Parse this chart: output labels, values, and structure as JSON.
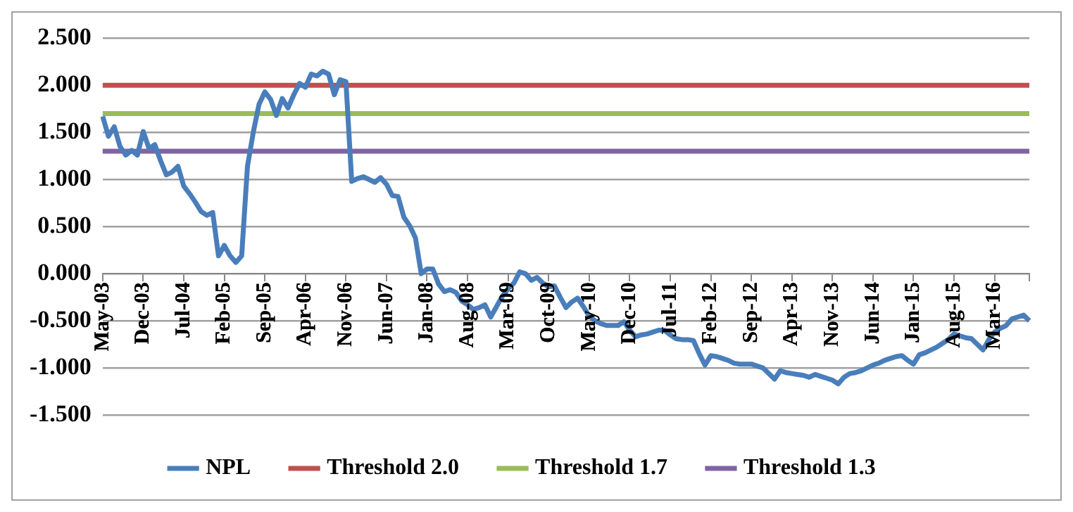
{
  "chart_data": {
    "type": "line",
    "categories": [
      "May-03",
      null,
      null,
      null,
      null,
      null,
      null,
      "Dec-03",
      null,
      null,
      null,
      null,
      null,
      null,
      "Jul-04",
      null,
      null,
      null,
      null,
      null,
      null,
      "Feb-05",
      null,
      null,
      null,
      null,
      null,
      null,
      "Sep-05",
      null,
      null,
      null,
      null,
      null,
      null,
      "Apr-06",
      null,
      null,
      null,
      null,
      null,
      null,
      "Nov-06",
      null,
      null,
      null,
      null,
      null,
      null,
      "Jun-07",
      null,
      null,
      null,
      null,
      null,
      null,
      "Jan-08",
      null,
      null,
      null,
      null,
      null,
      null,
      "Aug-08",
      null,
      null,
      null,
      null,
      null,
      null,
      "Mar-09",
      null,
      null,
      null,
      null,
      null,
      null,
      "Oct-09",
      null,
      null,
      null,
      null,
      null,
      null,
      "May-10",
      null,
      null,
      null,
      null,
      null,
      null,
      "Dec-10",
      null,
      null,
      null,
      null,
      null,
      null,
      "Jul-11",
      null,
      null,
      null,
      null,
      null,
      null,
      "Feb-12",
      null,
      null,
      null,
      null,
      null,
      null,
      "Sep-12",
      null,
      null,
      null,
      null,
      null,
      null,
      "Apr-13",
      null,
      null,
      null,
      null,
      null,
      null,
      "Nov-13",
      null,
      null,
      null,
      null,
      null,
      null,
      "Jun-14",
      null,
      null,
      null,
      null,
      null,
      null,
      "Jan-15",
      null,
      null,
      null,
      null,
      null,
      null,
      "Aug-15",
      null,
      null,
      null,
      null,
      null,
      null,
      "Mar-16",
      null,
      null,
      null,
      null,
      null,
      null
    ],
    "series": [
      {
        "name": "NPL",
        "color": "#4a7ebb",
        "values": [
          1.67,
          1.46,
          1.56,
          1.35,
          1.26,
          1.31,
          1.26,
          1.51,
          1.33,
          1.37,
          1.2,
          1.05,
          1.08,
          1.14,
          0.93,
          0.85,
          0.76,
          0.66,
          0.62,
          0.65,
          0.19,
          0.3,
          0.19,
          0.12,
          0.19,
          1.14,
          1.5,
          1.8,
          1.93,
          1.85,
          1.68,
          1.86,
          1.76,
          1.9,
          2.02,
          1.98,
          2.12,
          2.1,
          2.15,
          2.12,
          1.9,
          2.06,
          2.04,
          0.98,
          1.01,
          1.03,
          1.0,
          0.97,
          1.02,
          0.95,
          0.83,
          0.82,
          0.6,
          0.51,
          0.38,
          0.0,
          0.05,
          0.05,
          -0.11,
          -0.19,
          -0.17,
          -0.2,
          -0.29,
          -0.33,
          -0.38,
          -0.36,
          -0.33,
          -0.46,
          -0.35,
          -0.24,
          -0.16,
          -0.1,
          0.02,
          0.0,
          -0.07,
          -0.04,
          -0.1,
          -0.14,
          -0.13,
          -0.25,
          -0.36,
          -0.3,
          -0.26,
          -0.35,
          -0.45,
          -0.5,
          -0.53,
          -0.55,
          -0.55,
          -0.55,
          -0.51,
          -0.6,
          -0.67,
          -0.65,
          -0.64,
          -0.62,
          -0.6,
          -0.6,
          -0.65,
          -0.69,
          -0.7,
          -0.7,
          -0.71,
          -0.85,
          -0.97,
          -0.87,
          -0.88,
          -0.9,
          -0.92,
          -0.95,
          -0.96,
          -0.96,
          -0.96,
          -0.98,
          -1.0,
          -1.06,
          -1.12,
          -1.03,
          -1.05,
          -1.06,
          -1.07,
          -1.08,
          -1.1,
          -1.07,
          -1.09,
          -1.11,
          -1.13,
          -1.17,
          -1.1,
          -1.06,
          -1.05,
          -1.03,
          -1.0,
          -0.97,
          -0.95,
          -0.92,
          -0.9,
          -0.88,
          -0.87,
          -0.92,
          -0.96,
          -0.86,
          -0.84,
          -0.81,
          -0.78,
          -0.74,
          -0.7,
          -0.64,
          -0.66,
          -0.68,
          -0.69,
          -0.75,
          -0.81,
          -0.7,
          -0.62,
          -0.58,
          -0.55,
          -0.48,
          -0.46,
          -0.44,
          -0.5
        ]
      },
      {
        "name": "Threshold 2.0",
        "color": "#c0504d",
        "values": [
          2.0,
          2.0,
          2.0,
          2.0,
          2.0,
          2.0,
          2.0,
          2.0,
          2.0,
          2.0,
          2.0,
          2.0,
          2.0,
          2.0,
          2.0,
          2.0,
          2.0,
          2.0,
          2.0,
          2.0,
          2.0,
          2.0,
          2.0,
          2.0,
          2.0,
          2.0,
          2.0,
          2.0,
          2.0,
          2.0,
          2.0,
          2.0,
          2.0,
          2.0,
          2.0,
          2.0,
          2.0,
          2.0,
          2.0,
          2.0,
          2.0,
          2.0,
          2.0,
          2.0,
          2.0,
          2.0,
          2.0,
          2.0,
          2.0,
          2.0,
          2.0,
          2.0,
          2.0,
          2.0,
          2.0,
          2.0,
          2.0,
          2.0,
          2.0,
          2.0,
          2.0,
          2.0,
          2.0,
          2.0,
          2.0,
          2.0,
          2.0,
          2.0,
          2.0,
          2.0,
          2.0,
          2.0,
          2.0,
          2.0,
          2.0,
          2.0,
          2.0,
          2.0,
          2.0,
          2.0,
          2.0,
          2.0,
          2.0,
          2.0,
          2.0,
          2.0,
          2.0,
          2.0,
          2.0,
          2.0,
          2.0,
          2.0,
          2.0,
          2.0,
          2.0,
          2.0,
          2.0,
          2.0,
          2.0,
          2.0,
          2.0,
          2.0,
          2.0,
          2.0,
          2.0,
          2.0,
          2.0,
          2.0,
          2.0,
          2.0,
          2.0,
          2.0,
          2.0,
          2.0,
          2.0,
          2.0,
          2.0,
          2.0,
          2.0,
          2.0,
          2.0,
          2.0,
          2.0,
          2.0,
          2.0,
          2.0,
          2.0,
          2.0,
          2.0,
          2.0,
          2.0,
          2.0,
          2.0,
          2.0,
          2.0,
          2.0,
          2.0,
          2.0,
          2.0,
          2.0,
          2.0,
          2.0,
          2.0,
          2.0,
          2.0,
          2.0,
          2.0,
          2.0,
          2.0,
          2.0,
          2.0,
          2.0,
          2.0,
          2.0,
          2.0,
          2.0,
          2.0,
          2.0,
          2.0,
          2.0,
          2.0
        ]
      },
      {
        "name": "Threshold 1.7",
        "color": "#9bbb59",
        "values": [
          1.7,
          1.7,
          1.7,
          1.7,
          1.7,
          1.7,
          1.7,
          1.7,
          1.7,
          1.7,
          1.7,
          1.7,
          1.7,
          1.7,
          1.7,
          1.7,
          1.7,
          1.7,
          1.7,
          1.7,
          1.7,
          1.7,
          1.7,
          1.7,
          1.7,
          1.7,
          1.7,
          1.7,
          1.7,
          1.7,
          1.7,
          1.7,
          1.7,
          1.7,
          1.7,
          1.7,
          1.7,
          1.7,
          1.7,
          1.7,
          1.7,
          1.7,
          1.7,
          1.7,
          1.7,
          1.7,
          1.7,
          1.7,
          1.7,
          1.7,
          1.7,
          1.7,
          1.7,
          1.7,
          1.7,
          1.7,
          1.7,
          1.7,
          1.7,
          1.7,
          1.7,
          1.7,
          1.7,
          1.7,
          1.7,
          1.7,
          1.7,
          1.7,
          1.7,
          1.7,
          1.7,
          1.7,
          1.7,
          1.7,
          1.7,
          1.7,
          1.7,
          1.7,
          1.7,
          1.7,
          1.7,
          1.7,
          1.7,
          1.7,
          1.7,
          1.7,
          1.7,
          1.7,
          1.7,
          1.7,
          1.7,
          1.7,
          1.7,
          1.7,
          1.7,
          1.7,
          1.7,
          1.7,
          1.7,
          1.7,
          1.7,
          1.7,
          1.7,
          1.7,
          1.7,
          1.7,
          1.7,
          1.7,
          1.7,
          1.7,
          1.7,
          1.7,
          1.7,
          1.7,
          1.7,
          1.7,
          1.7,
          1.7,
          1.7,
          1.7,
          1.7,
          1.7,
          1.7,
          1.7,
          1.7,
          1.7,
          1.7,
          1.7,
          1.7,
          1.7,
          1.7,
          1.7,
          1.7,
          1.7,
          1.7,
          1.7,
          1.7,
          1.7,
          1.7,
          1.7,
          1.7,
          1.7,
          1.7,
          1.7,
          1.7,
          1.7,
          1.7,
          1.7,
          1.7,
          1.7,
          1.7,
          1.7,
          1.7,
          1.7,
          1.7,
          1.7,
          1.7,
          1.7,
          1.7,
          1.7,
          1.7
        ]
      },
      {
        "name": "Threshold 1.3",
        "color": "#8064a2",
        "values": [
          1.3,
          1.3,
          1.3,
          1.3,
          1.3,
          1.3,
          1.3,
          1.3,
          1.3,
          1.3,
          1.3,
          1.3,
          1.3,
          1.3,
          1.3,
          1.3,
          1.3,
          1.3,
          1.3,
          1.3,
          1.3,
          1.3,
          1.3,
          1.3,
          1.3,
          1.3,
          1.3,
          1.3,
          1.3,
          1.3,
          1.3,
          1.3,
          1.3,
          1.3,
          1.3,
          1.3,
          1.3,
          1.3,
          1.3,
          1.3,
          1.3,
          1.3,
          1.3,
          1.3,
          1.3,
          1.3,
          1.3,
          1.3,
          1.3,
          1.3,
          1.3,
          1.3,
          1.3,
          1.3,
          1.3,
          1.3,
          1.3,
          1.3,
          1.3,
          1.3,
          1.3,
          1.3,
          1.3,
          1.3,
          1.3,
          1.3,
          1.3,
          1.3,
          1.3,
          1.3,
          1.3,
          1.3,
          1.3,
          1.3,
          1.3,
          1.3,
          1.3,
          1.3,
          1.3,
          1.3,
          1.3,
          1.3,
          1.3,
          1.3,
          1.3,
          1.3,
          1.3,
          1.3,
          1.3,
          1.3,
          1.3,
          1.3,
          1.3,
          1.3,
          1.3,
          1.3,
          1.3,
          1.3,
          1.3,
          1.3,
          1.3,
          1.3,
          1.3,
          1.3,
          1.3,
          1.3,
          1.3,
          1.3,
          1.3,
          1.3,
          1.3,
          1.3,
          1.3,
          1.3,
          1.3,
          1.3,
          1.3,
          1.3,
          1.3,
          1.3,
          1.3,
          1.3,
          1.3,
          1.3,
          1.3,
          1.3,
          1.3,
          1.3,
          1.3,
          1.3,
          1.3,
          1.3,
          1.3,
          1.3,
          1.3,
          1.3,
          1.3,
          1.3,
          1.3,
          1.3,
          1.3,
          1.3,
          1.3,
          1.3,
          1.3,
          1.3,
          1.3,
          1.3,
          1.3,
          1.3,
          1.3,
          1.3,
          1.3,
          1.3,
          1.3,
          1.3,
          1.3,
          1.3,
          1.3,
          1.3,
          1.3
        ]
      }
    ],
    "ylim": [
      -1.5,
      2.5
    ],
    "yticks": [
      {
        "value": 2.5,
        "label": "2.500"
      },
      {
        "value": 2.0,
        "label": "2.000"
      },
      {
        "value": 1.5,
        "label": "1.500"
      },
      {
        "value": 1.0,
        "label": "1.000"
      },
      {
        "value": 0.5,
        "label": "0.500"
      },
      {
        "value": 0,
        "label": "0.000"
      },
      {
        "value": -0.5,
        "label": "-0.500"
      },
      {
        "value": -1.0,
        "label": "-1.000"
      },
      {
        "value": -1.5,
        "label": "-1.500"
      }
    ],
    "grid": "y",
    "legend": "bottom"
  }
}
